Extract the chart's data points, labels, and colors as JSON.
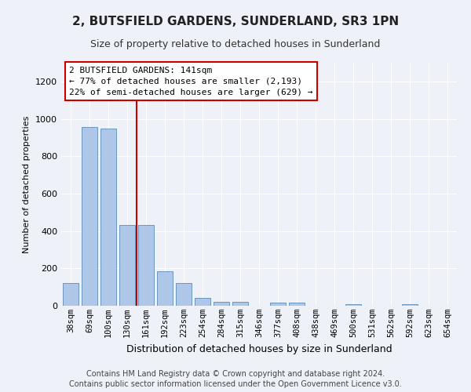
{
  "title": "2, BUTSFIELD GARDENS, SUNDERLAND, SR3 1PN",
  "subtitle": "Size of property relative to detached houses in Sunderland",
  "xlabel": "Distribution of detached houses by size in Sunderland",
  "ylabel": "Number of detached properties",
  "categories": [
    "38sqm",
    "69sqm",
    "100sqm",
    "130sqm",
    "161sqm",
    "192sqm",
    "223sqm",
    "254sqm",
    "284sqm",
    "315sqm",
    "346sqm",
    "377sqm",
    "408sqm",
    "438sqm",
    "469sqm",
    "500sqm",
    "531sqm",
    "562sqm",
    "592sqm",
    "623sqm",
    "654sqm"
  ],
  "values": [
    120,
    955,
    948,
    430,
    430,
    183,
    120,
    42,
    22,
    22,
    0,
    17,
    17,
    0,
    0,
    10,
    0,
    0,
    10,
    0,
    0
  ],
  "bar_color": "#aec6e8",
  "bar_edge_color": "#5b8db8",
  "vline_x_idx": 3,
  "vline_color": "#cc0000",
  "annotation_text": "2 BUTSFIELD GARDENS: 141sqm\n← 77% of detached houses are smaller (2,193)\n22% of semi-detached houses are larger (629) →",
  "annotation_box_color": "#ffffff",
  "annotation_box_edge": "#cc0000",
  "ylim": [
    0,
    1300
  ],
  "yticks": [
    0,
    200,
    400,
    600,
    800,
    1000,
    1200
  ],
  "footer": "Contains HM Land Registry data © Crown copyright and database right 2024.\nContains public sector information licensed under the Open Government Licence v3.0.",
  "bg_color": "#eef2f8",
  "grid_color": "#ffffff",
  "title_fontsize": 11,
  "subtitle_fontsize": 9,
  "xlabel_fontsize": 9,
  "ylabel_fontsize": 8,
  "tick_fontsize": 7.5,
  "annot_fontsize": 8,
  "footer_fontsize": 7
}
